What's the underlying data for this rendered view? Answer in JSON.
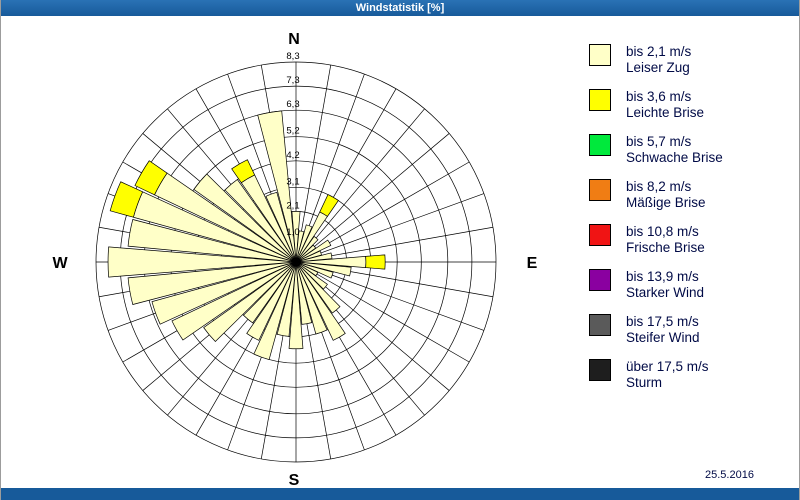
{
  "window": {
    "title": "Windstatistik [%]",
    "date": "25.5.2016"
  },
  "compass": {
    "north": "N",
    "east": "E",
    "south": "S",
    "west": "W"
  },
  "legend": [
    {
      "color": "#FFFFC8",
      "line1": "bis 2,1 m/s",
      "line2": "Leiser Zug"
    },
    {
      "color": "#FFFF00",
      "line1": "bis 3,6 m/s",
      "line2": "Leichte Brise"
    },
    {
      "color": "#00E93C",
      "line1": "bis 5,7 m/s",
      "line2": "Schwache Brise"
    },
    {
      "color": "#F07D14",
      "line1": "bis 8,2 m/s",
      "line2": "Mäßige Brise"
    },
    {
      "color": "#F01414",
      "line1": "bis 10,8 m/s",
      "line2": "Frische Brise"
    },
    {
      "color": "#8A00A0",
      "line1": "bis 13,9 m/s",
      "line2": "Starker Wind"
    },
    {
      "color": "#5A5A5A",
      "line1": "bis 17,5 m/s",
      "line2": "Steifer Wind"
    },
    {
      "color": "#1E1E1E",
      "line1": "über 17,5 m/s",
      "line2": "Sturm"
    }
  ],
  "chart_data": {
    "type": "windrose",
    "unit": "%",
    "title": "Windstatistik [%]",
    "ring_values": [
      1.0,
      2.1,
      3.1,
      4.2,
      5.2,
      6.3,
      7.3,
      8.3
    ],
    "ring_labels": [
      "1,0",
      "2,1",
      "3,1",
      "4,2",
      "5,2",
      "6,3",
      "7,3",
      "8,3"
    ],
    "sector_width_deg": 10,
    "directions_deg": [
      0,
      10,
      20,
      30,
      40,
      50,
      60,
      70,
      80,
      90,
      100,
      110,
      120,
      130,
      140,
      150,
      160,
      170,
      180,
      190,
      200,
      210,
      220,
      230,
      240,
      250,
      260,
      270,
      280,
      290,
      300,
      310,
      320,
      330,
      340,
      350
    ],
    "series": [
      {
        "name": "bis 2,1 m/s Leiser Zug",
        "color": "#FFFFC8",
        "values": [
          2.1,
          1.3,
          1.6,
          2.3,
          1.3,
          1.0,
          1.6,
          1.1,
          1.5,
          2.9,
          2.3,
          1.6,
          1.0,
          1.6,
          2.6,
          3.6,
          3.1,
          2.6,
          3.6,
          3.1,
          4.2,
          3.6,
          3.1,
          4.7,
          5.7,
          6.2,
          7.0,
          7.8,
          7.0,
          7.0,
          6.5,
          5.2,
          4.2,
          4.0,
          3.0,
          6.3
        ]
      },
      {
        "name": "bis 3,6 m/s Leichte Brise",
        "color": "#FFFF00",
        "values": [
          0,
          0,
          0,
          0.8,
          0,
          0,
          0,
          0,
          0,
          0.8,
          0,
          0,
          0,
          0,
          0,
          0,
          0,
          0,
          0,
          0,
          0,
          0,
          0,
          0,
          0,
          0,
          0,
          0,
          0,
          1.0,
          0.9,
          0,
          0,
          0.7,
          0,
          0
        ]
      }
    ],
    "grid": "on",
    "legend_position": "right"
  }
}
